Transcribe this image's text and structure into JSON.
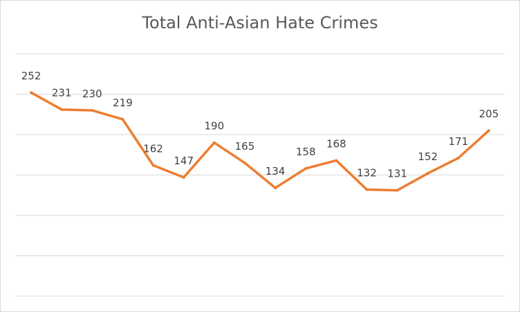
{
  "chart_data": {
    "type": "line",
    "title": "Total Anti-Asian Hate Crimes",
    "xlabel": "",
    "ylabel": "",
    "x": [
      1,
      2,
      3,
      4,
      5,
      6,
      7,
      8,
      9,
      10,
      11,
      12,
      13,
      14,
      15,
      16
    ],
    "series": [
      {
        "values": [
          252,
          231,
          230,
          219,
          162,
          147,
          190,
          165,
          134,
          158,
          168,
          132,
          131,
          152,
          171,
          205
        ]
      }
    ],
    "ylim": [
      0,
      300
    ],
    "gridlines": true,
    "axis_tick_labels_shown": false,
    "data_labels_shown": true,
    "legend": "none",
    "colors": {
      "line": "#ed7d31",
      "grid": "#d9d9d9",
      "text": "#404040",
      "title": "#595959"
    }
  }
}
